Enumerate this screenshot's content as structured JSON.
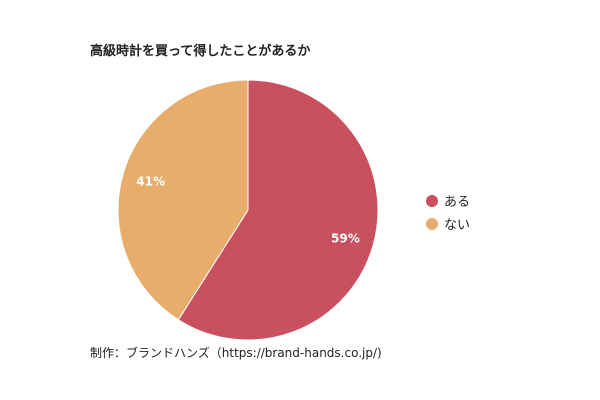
{
  "chart_data": {
    "type": "pie",
    "title": "高級時計を買って得したことがあるか",
    "categories": [
      "ある",
      "ない"
    ],
    "values": [
      59,
      41
    ],
    "data_labels": [
      "59%",
      "41%"
    ],
    "colors": [
      "#C9505F",
      "#E8AD6A"
    ],
    "legend_position": "right"
  },
  "credit": "制作：ブランドハンズ（https://brand-hands.co.jp/)"
}
